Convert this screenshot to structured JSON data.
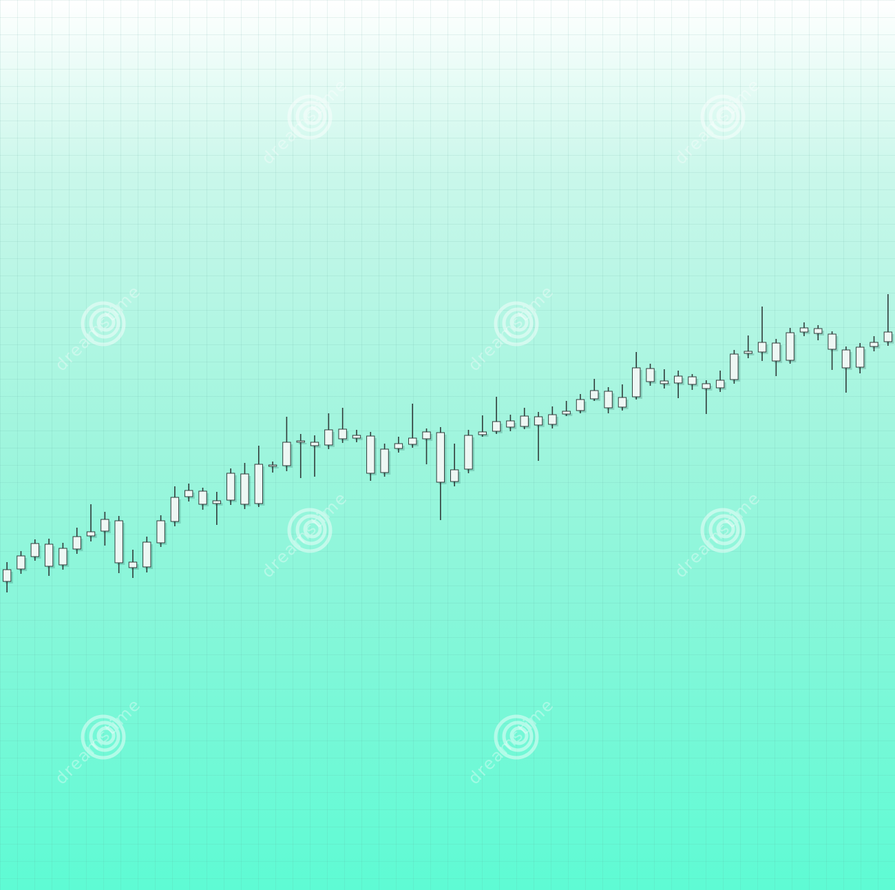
{
  "chart_data": {
    "type": "candlestick",
    "watermark": "dreamstime",
    "categories": [
      null,
      null,
      null,
      null,
      null,
      null,
      null,
      null,
      null,
      null,
      null,
      null,
      null,
      null,
      null,
      null,
      null,
      null,
      null,
      null,
      null,
      null,
      null,
      null,
      null,
      null,
      null,
      null,
      null,
      null,
      null,
      null,
      null,
      null,
      null,
      null,
      null,
      null,
      null,
      null,
      null,
      null,
      null,
      null,
      null,
      null,
      null,
      null,
      null,
      null,
      null,
      null,
      null,
      null,
      null,
      null,
      null,
      null,
      null,
      null,
      null,
      null,
      null,
      null
    ],
    "open": [
      44.8,
      46.6,
      48.4,
      50.2,
      47.2,
      49.5,
      51.4,
      52.1,
      53.6,
      47.6,
      46.9,
      50.4,
      53.5,
      57.1,
      57.9,
      56.1,
      56.6,
      60.4,
      56.1,
      61.7,
      61.6,
      65.1,
      65.0,
      64.6,
      66.9,
      65.6,
      65.9,
      60.6,
      64.1,
      64.7,
      65.5,
      66.4,
      59.3,
      61.1,
      66.1,
      66.6,
      68.1,
      67.3,
      68.7,
      67.6,
      69.1,
      69.6,
      71.3,
      72.4,
      70.1,
      71.6,
      75.7,
      73.9,
      73.6,
      74.5,
      73.5,
      72.9,
      74.1,
      77.9,
      78.1,
      79.4,
      76.9,
      81.0,
      81.5,
      80.7,
      78.4,
      75.9,
      78.9,
      79.6
    ],
    "high": [
      47.6,
      49.2,
      50.9,
      51.0,
      50.4,
      52.6,
      56.0,
      54.9,
      54.3,
      49.4,
      51.3,
      54.4,
      58.6,
      59.0,
      58.4,
      57.8,
      61.2,
      62.0,
      64.5,
      62.2,
      68.7,
      66.2,
      66.0,
      69.2,
      70.0,
      66.8,
      66.5,
      64.8,
      65.8,
      70.6,
      67.0,
      67.2,
      64.8,
      66.8,
      68.9,
      71.6,
      69.0,
      70.0,
      69.4,
      70.2,
      71.0,
      72.0,
      74.2,
      73.0,
      73.4,
      78.1,
      76.4,
      75.6,
      75.4,
      74.9,
      74.0,
      75.4,
      78.4,
      80.5,
      84.7,
      80.0,
      81.6,
      82.4,
      82.0,
      81.1,
      78.9,
      79.4,
      80.4,
      86.5
    ],
    "low": [
      43.2,
      45.9,
      47.8,
      45.6,
      46.5,
      48.8,
      50.6,
      50.0,
      46.0,
      45.3,
      46.1,
      49.8,
      52.8,
      56.4,
      55.2,
      53.0,
      55.9,
      55.3,
      55.6,
      60.6,
      60.8,
      59.8,
      60.0,
      64.0,
      64.9,
      65.0,
      59.4,
      60.0,
      63.5,
      64.2,
      61.8,
      53.7,
      58.6,
      60.5,
      65.8,
      66.2,
      66.6,
      66.9,
      62.3,
      67.0,
      68.8,
      69.2,
      71.0,
      69.2,
      69.6,
      71.2,
      73.2,
      72.8,
      71.4,
      72.6,
      69.1,
      72.3,
      73.5,
      77.2,
      76.8,
      74.6,
      76.4,
      80.4,
      79.8,
      75.5,
      72.2,
      75.0,
      78.2,
      79.0
    ],
    "close": [
      46.5,
      48.5,
      50.3,
      47.0,
      49.6,
      51.3,
      52.0,
      53.8,
      47.5,
      46.8,
      50.5,
      53.6,
      57.0,
      58.0,
      56.0,
      56.5,
      60.5,
      56.0,
      61.8,
      61.5,
      65.0,
      65.2,
      64.5,
      66.8,
      65.5,
      66.0,
      60.5,
      64.0,
      64.8,
      65.6,
      66.5,
      59.2,
      61.0,
      66.0,
      66.5,
      68.0,
      67.2,
      68.8,
      67.5,
      69.0,
      69.5,
      71.2,
      72.5,
      70.0,
      71.5,
      75.8,
      73.8,
      73.5,
      74.6,
      73.4,
      72.8,
      74.0,
      77.8,
      78.2,
      79.5,
      76.8,
      80.9,
      81.6,
      80.8,
      78.5,
      75.8,
      78.8,
      79.5,
      81.0
    ],
    "ylim": [
      0,
      129.2
    ],
    "grid": true,
    "body_color": "#eef7f4",
    "wick_color": "#2f3a38"
  }
}
